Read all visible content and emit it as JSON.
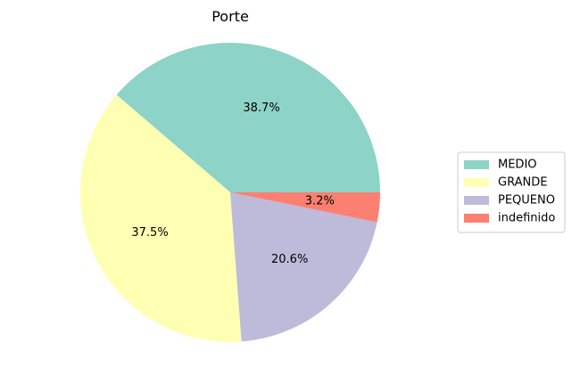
{
  "chart_data": {
    "type": "pie",
    "title": "Porte",
    "categories": [
      "MEDIO",
      "GRANDE",
      "PEQUENO",
      "indefinido"
    ],
    "values": [
      38.7,
      37.5,
      20.6,
      3.2
    ],
    "labels": [
      "38.7%",
      "37.5%",
      "20.6%",
      "3.2%"
    ],
    "colors": [
      "#8dd3c7",
      "#ffffb3",
      "#bebada",
      "#fb8072"
    ],
    "start_angle_deg": 0,
    "direction": "counterclockwise",
    "legend_position": "right"
  }
}
